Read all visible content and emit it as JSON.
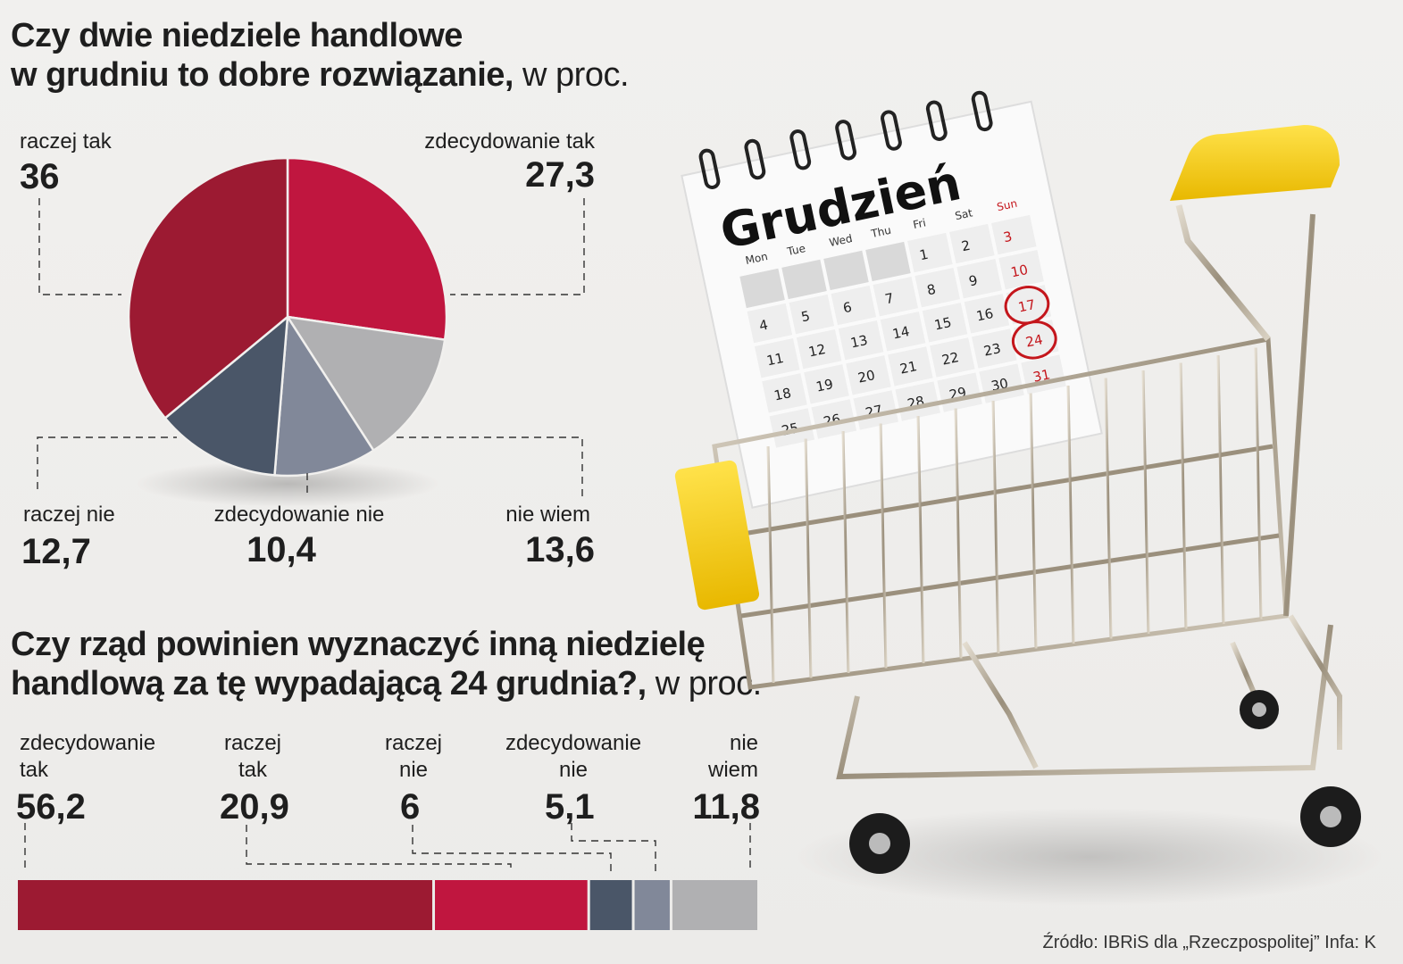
{
  "chart1": {
    "title_bold": "Czy dwie niedziele handlowe w grudniu to dobre rozwiązanie,",
    "title_bold_line1": "Czy dwie niedziele handlowe",
    "title_bold_line2": "w grudniu to dobre rozwiązanie,",
    "title_unit": " w proc."
  },
  "chart2": {
    "title_bold_line1": "Czy rząd powinien wyznaczyć inną niedzielę",
    "title_bold_line2": "handlową za tę wypadającą 24 grudnia?,",
    "title_unit": " w proc."
  },
  "chart_data": [
    {
      "type": "pie",
      "categories": [
        "zdecydowanie tak",
        "nie wiem",
        "zdecydowanie nie",
        "raczej nie",
        "raczej tak"
      ],
      "values": [
        27.3,
        13.6,
        10.4,
        12.7,
        36
      ],
      "value_labels": [
        "27,3",
        "13,6",
        "10,4",
        "12,7",
        "36"
      ],
      "colors": [
        "#c0163f",
        "#b0b0b2",
        "#818899",
        "#4a5668",
        "#9c1a32"
      ]
    },
    {
      "type": "bar",
      "orientation": "stacked-horizontal",
      "categories": [
        "zdecydowanie tak",
        "raczej tak",
        "raczej nie",
        "zdecydowanie nie",
        "nie wiem"
      ],
      "category_lines": [
        [
          "zdecydowanie",
          "tak"
        ],
        [
          "raczej",
          "tak"
        ],
        [
          "raczej",
          "nie"
        ],
        [
          "zdecydowanie",
          "nie"
        ],
        [
          "nie",
          "wiem"
        ]
      ],
      "values": [
        56.2,
        20.9,
        6,
        5.1,
        11.8
      ],
      "value_labels": [
        "56,2",
        "20,9",
        "6",
        "5,1",
        "11,8"
      ],
      "colors": [
        "#9c1a32",
        "#c0163f",
        "#4a5668",
        "#818899",
        "#b0b0b2"
      ]
    }
  ],
  "photo": {
    "calendar_month": "Grudzień",
    "weekdays": [
      "Mon",
      "Tue",
      "Wed",
      "Thu",
      "Fri",
      "Sat",
      "Sun"
    ],
    "days": [
      [
        "",
        "",
        "",
        "",
        "1",
        "2",
        "3"
      ],
      [
        "4",
        "5",
        "6",
        "7",
        "8",
        "9",
        "10"
      ],
      [
        "11",
        "12",
        "13",
        "14",
        "15",
        "16",
        "17"
      ],
      [
        "18",
        "19",
        "20",
        "21",
        "22",
        "23",
        "24"
      ],
      [
        "25",
        "26",
        "27",
        "28",
        "29",
        "30",
        "31"
      ]
    ],
    "circled_days": [
      "17",
      "24"
    ]
  },
  "footer": {
    "source": "Źródło: IBRiS dla „Rzeczpospolitej” Infa: K"
  }
}
